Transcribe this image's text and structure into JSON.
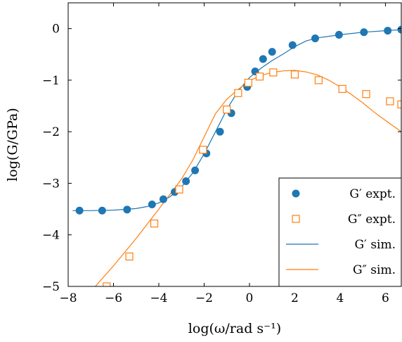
{
  "chart_data": {
    "type": "scatter",
    "xlabel": "log(ω/rad s⁻¹)",
    "ylabel": "log(G/GPa)",
    "xlim": [
      -8,
      6.7
    ],
    "ylim": [
      -5,
      0.5
    ],
    "x_ticks": [
      -8,
      -6,
      -4,
      -2,
      0,
      2,
      4,
      6
    ],
    "x_tick_labels": [
      "−8",
      "−6",
      "−4",
      "−2",
      "0",
      "2",
      "4",
      "6"
    ],
    "y_ticks": [
      -5,
      -4,
      -3,
      -2,
      -1,
      0
    ],
    "y_tick_labels": [
      "−5",
      "−4",
      "−3",
      "−2",
      "−1",
      "0"
    ],
    "legend_position": "bottom-right",
    "grid": false,
    "colors": {
      "blue": "#1f77b4",
      "orange": "#ff7f0e"
    },
    "series": [
      {
        "name": "G′ expt.",
        "kind": "points",
        "marker": "filled-circle",
        "color": "#1f77b4",
        "x": [
          -7.5,
          -6.5,
          -5.4,
          -4.3,
          -3.8,
          -3.3,
          -2.8,
          -2.4,
          -1.9,
          -1.3,
          -0.8,
          -0.1,
          0.25,
          0.6,
          1.0,
          1.9,
          2.9,
          3.95,
          5.05,
          6.1,
          6.7
        ],
        "y": [
          -3.53,
          -3.53,
          -3.51,
          -3.41,
          -3.31,
          -3.17,
          -2.96,
          -2.75,
          -2.42,
          -2.0,
          -1.64,
          -1.13,
          -0.83,
          -0.59,
          -0.45,
          -0.32,
          -0.19,
          -0.12,
          -0.07,
          -0.04,
          -0.02
        ]
      },
      {
        "name": "G″ expt.",
        "kind": "points",
        "marker": "open-square",
        "color": "#ff7f0e",
        "x": [
          -6.3,
          -5.3,
          -4.2,
          -3.1,
          -2.05,
          -1.0,
          -0.5,
          -0.05,
          0.45,
          1.05,
          2.0,
          3.05,
          4.1,
          5.15,
          6.2,
          6.7
        ],
        "y": [
          -5.0,
          -4.42,
          -3.78,
          -3.12,
          -2.35,
          -1.57,
          -1.25,
          -1.05,
          -0.93,
          -0.85,
          -0.89,
          -1.0,
          -1.17,
          -1.27,
          -1.41,
          -1.47
        ]
      },
      {
        "name": "G′ sim.",
        "kind": "line",
        "color": "#1f77b4",
        "x": [
          -7.8,
          -7,
          -6,
          -5,
          -4.5,
          -4,
          -3.5,
          -3,
          -2.5,
          -2,
          -1.5,
          -1,
          -0.5,
          0,
          0.5,
          1,
          1.5,
          2,
          2.5,
          3,
          3.5,
          4,
          5,
          6,
          6.7
        ],
        "y": [
          -3.53,
          -3.53,
          -3.52,
          -3.49,
          -3.45,
          -3.38,
          -3.26,
          -3.07,
          -2.8,
          -2.43,
          -2.0,
          -1.57,
          -1.21,
          -0.95,
          -0.77,
          -0.62,
          -0.49,
          -0.35,
          -0.24,
          -0.18,
          -0.15,
          -0.12,
          -0.07,
          -0.04,
          -0.02
        ]
      },
      {
        "name": "G″ sim.",
        "kind": "line",
        "color": "#ff7f0e",
        "x": [
          -7.8,
          -7,
          -6,
          -5,
          -4,
          -3,
          -2.5,
          -2,
          -1.5,
          -1,
          -0.5,
          0,
          0.5,
          1,
          1.5,
          2,
          2.5,
          3,
          3.5,
          4,
          4.5,
          5,
          5.5,
          6,
          6.7
        ],
        "y": [
          -5.55,
          -5.1,
          -4.6,
          -4.07,
          -3.5,
          -2.92,
          -2.55,
          -2.1,
          -1.65,
          -1.37,
          -1.18,
          -1.01,
          -0.91,
          -0.85,
          -0.82,
          -0.81,
          -0.84,
          -0.9,
          -1.0,
          -1.13,
          -1.28,
          -1.44,
          -1.62,
          -1.78,
          -2.0
        ]
      }
    ]
  }
}
